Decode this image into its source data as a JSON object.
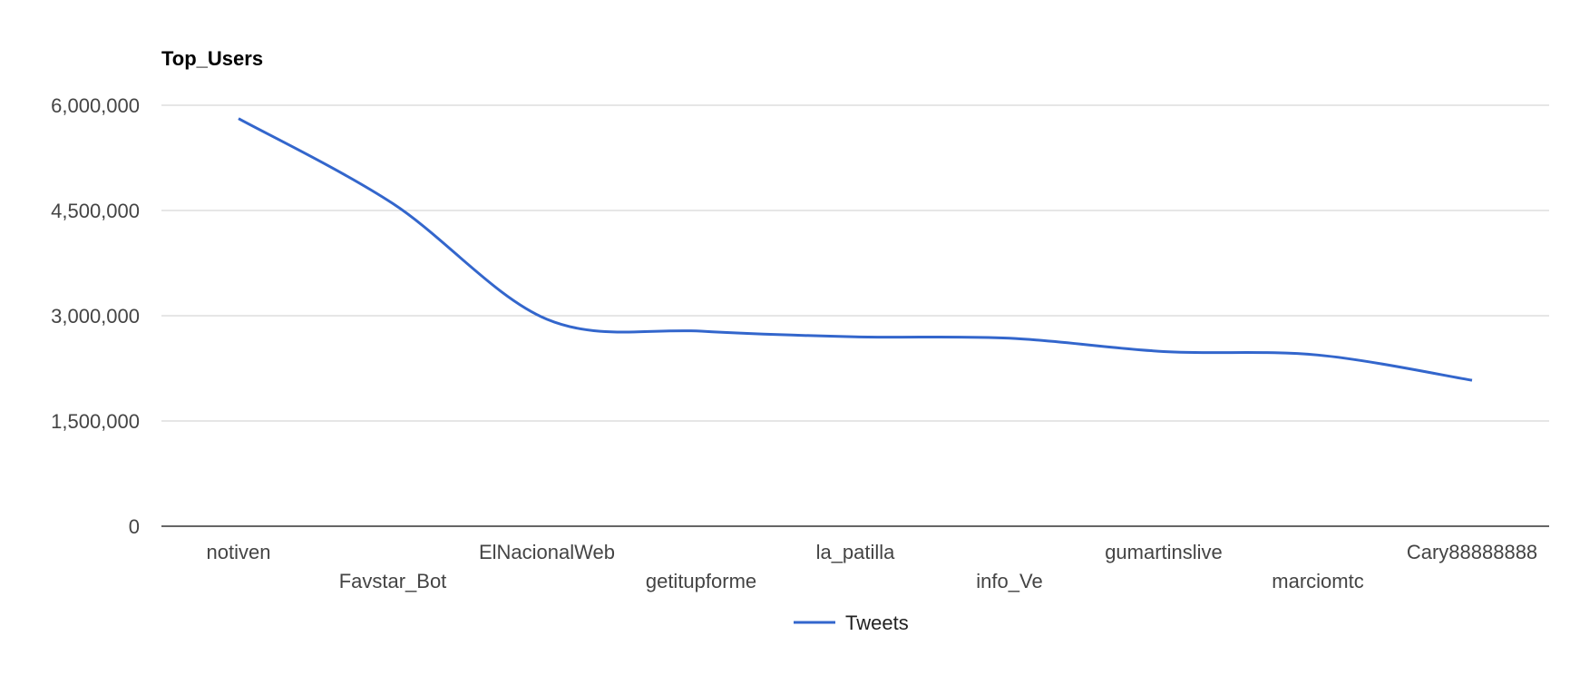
{
  "chart_data": {
    "type": "line",
    "title": "Top_Users",
    "categories": [
      "notiven",
      "Favstar_Bot",
      "ElNacionalWeb",
      "getitupforme",
      "la_patilla",
      "info_Ve",
      "gumartinslive",
      "marciomtc",
      "Cary88888888"
    ],
    "series": [
      {
        "name": "Tweets",
        "values": [
          5810000,
          4600000,
          2950000,
          2780000,
          2700000,
          2680000,
          2490000,
          2440000,
          2080000
        ]
      }
    ],
    "ylim": [
      0,
      6000000
    ],
    "yticks": [
      "0",
      "1,500,000",
      "3,000,000",
      "4,500,000",
      "6,000,000"
    ],
    "ytick_values": [
      0,
      1500000,
      3000000,
      4500000,
      6000000
    ],
    "grid": true,
    "legend_position": "bottom",
    "line_color": "#3366cc"
  }
}
